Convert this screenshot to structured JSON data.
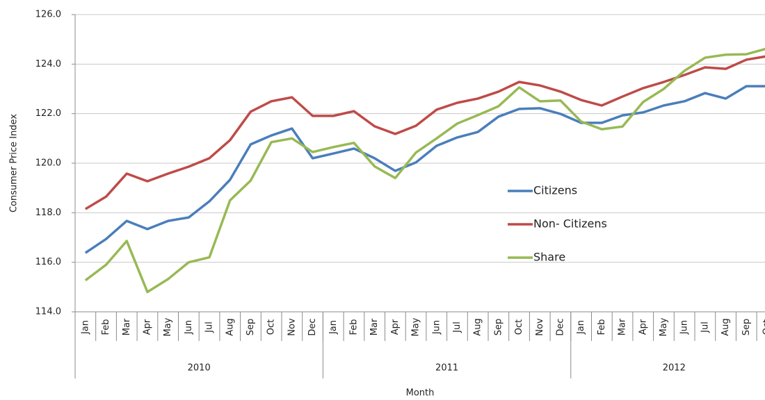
{
  "chart_data": {
    "type": "line",
    "y_label": "Consumer Price Index",
    "x_label": "Month",
    "category_groups": [
      {
        "label": "2010",
        "categories": [
          "Jan",
          "Feb",
          "Mar",
          "Apr",
          "May",
          "Jun",
          "Jul",
          "Aug",
          "Sep",
          "Oct",
          "Nov",
          "Dec"
        ]
      },
      {
        "label": "2011",
        "categories": [
          "Jan",
          "Feb",
          "Mar",
          "Apr",
          "May",
          "Jun",
          "Jul",
          "Aug",
          "Sep",
          "Oct",
          "Nov",
          "Dec"
        ]
      },
      {
        "label": "2012",
        "categories": [
          "Jan",
          "Feb",
          "Mar",
          "Apr",
          "May",
          "Jun",
          "Jul",
          "Aug",
          "Sep",
          "Oct"
        ]
      }
    ],
    "series": [
      {
        "name": "Citizens",
        "color": "#4a7ebb",
        "values": [
          116.38,
          116.94,
          117.67,
          117.34,
          117.67,
          117.81,
          118.46,
          119.33,
          120.76,
          121.12,
          121.4,
          120.2,
          120.39,
          120.59,
          120.2,
          119.69,
          120.03,
          120.7,
          121.04,
          121.26,
          121.88,
          122.19,
          122.22,
          121.99,
          121.63,
          121.63,
          121.93,
          122.05,
          122.33,
          122.5,
          122.83,
          122.61,
          123.11,
          123.11
        ]
      },
      {
        "name": "Non- Citizens",
        "color": "#be4b48",
        "values": [
          118.15,
          118.65,
          119.58,
          119.27,
          119.58,
          119.86,
          120.2,
          120.93,
          122.08,
          122.5,
          122.66,
          121.91,
          121.91,
          122.1,
          121.49,
          121.18,
          121.51,
          122.16,
          122.44,
          122.61,
          122.89,
          123.28,
          123.14,
          122.89,
          122.55,
          122.33,
          122.69,
          123.03,
          123.28,
          123.56,
          123.87,
          123.81,
          124.18,
          124.32
        ]
      },
      {
        "name": "Share",
        "color": "#98b954",
        "values": [
          115.27,
          115.9,
          116.86,
          114.8,
          115.32,
          116.0,
          116.2,
          118.5,
          119.3,
          120.85,
          121.0,
          120.45,
          120.65,
          120.82,
          119.87,
          119.4,
          120.43,
          121.0,
          121.6,
          121.94,
          122.3,
          123.06,
          122.5,
          122.53,
          121.68,
          121.37,
          121.48,
          122.47,
          123.0,
          123.73,
          124.26,
          124.38,
          124.4,
          124.63
        ]
      }
    ],
    "ylim": [
      114,
      126
    ],
    "yticks": [
      {
        "value": 114,
        "label": "114.0"
      },
      {
        "value": 116,
        "label": "116.0"
      },
      {
        "value": 118,
        "label": "118.0"
      },
      {
        "value": 120,
        "label": "120.0"
      },
      {
        "value": 122,
        "label": "122.0"
      },
      {
        "value": 124,
        "label": "124.0"
      },
      {
        "value": 126,
        "label": "126.0"
      }
    ],
    "grid": true,
    "legend": "center right"
  }
}
